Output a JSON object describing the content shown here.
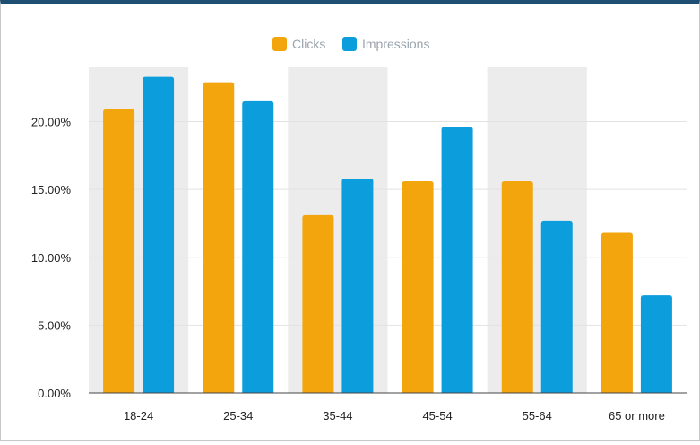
{
  "colors": {
    "clicks": "#f2a50c",
    "impressions": "#0c9ddd",
    "band": "#ececec",
    "grid": "#e2e2e2",
    "axis": "#444444"
  },
  "chart_data": {
    "type": "bar",
    "title": "",
    "xlabel": "",
    "ylabel": "",
    "categories": [
      "18-24",
      "25-34",
      "35-44",
      "45-54",
      "55-64",
      "65 or more"
    ],
    "series": [
      {
        "name": "Clicks",
        "values": [
          20.9,
          22.9,
          13.1,
          15.6,
          15.6,
          11.8
        ]
      },
      {
        "name": "Impressions",
        "values": [
          23.3,
          21.5,
          15.8,
          19.6,
          12.7,
          7.2
        ]
      }
    ],
    "ylim": [
      0,
      24
    ],
    "yticks": [
      0,
      5,
      10,
      15,
      20
    ],
    "ytick_labels": [
      "0.00%",
      "5.00%",
      "10.00%",
      "15.00%",
      "20.00%"
    ],
    "grid": true,
    "alternating_bands": true,
    "legend_position": "top-center"
  }
}
